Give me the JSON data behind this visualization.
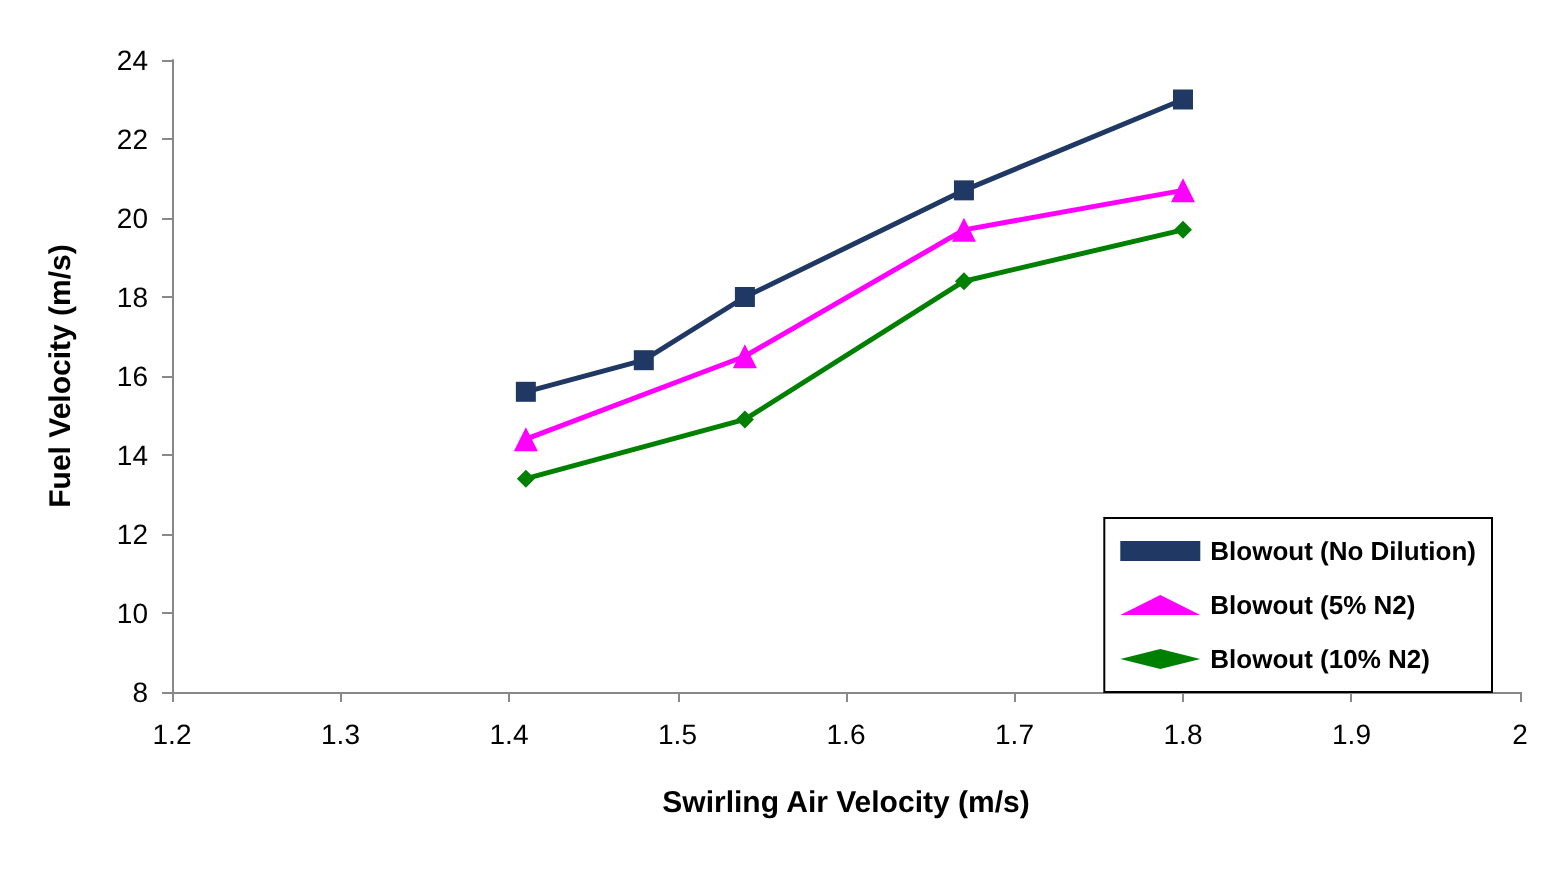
{
  "chart_data": {
    "type": "line",
    "xlabel": "Swirling Air Velocity (m/s)",
    "ylabel": "Fuel Velocity (m/s)",
    "x": [
      1.41,
      1.48,
      1.54,
      1.67,
      1.8
    ],
    "series": [
      {
        "name": "Blowout (No Dilution)",
        "color": "#1f3864",
        "marker": "square",
        "values": [
          15.6,
          16.4,
          18.0,
          20.7,
          23.0
        ]
      },
      {
        "name": "Blowout (5% N2)",
        "color": "#ff00ff",
        "marker": "triangle",
        "x": [
          1.41,
          1.54,
          1.67,
          1.8
        ],
        "values": [
          14.4,
          16.5,
          19.7,
          20.7
        ]
      },
      {
        "name": "Blowout (10% N2)",
        "color": "#008000",
        "marker": "diamond",
        "x": [
          1.41,
          1.54,
          1.67,
          1.8
        ],
        "values": [
          13.4,
          14.9,
          18.4,
          19.7
        ]
      }
    ],
    "xlim": [
      1.2,
      2
    ],
    "xticks": [
      1.2,
      1.3,
      1.4,
      1.5,
      1.6,
      1.7,
      1.8,
      1.9,
      2
    ],
    "ylim": [
      8,
      24
    ],
    "yticks": [
      8,
      10,
      12,
      14,
      16,
      18,
      20,
      22,
      24
    ],
    "grid": false,
    "legend": "bottom right",
    "line_style": "solid"
  }
}
